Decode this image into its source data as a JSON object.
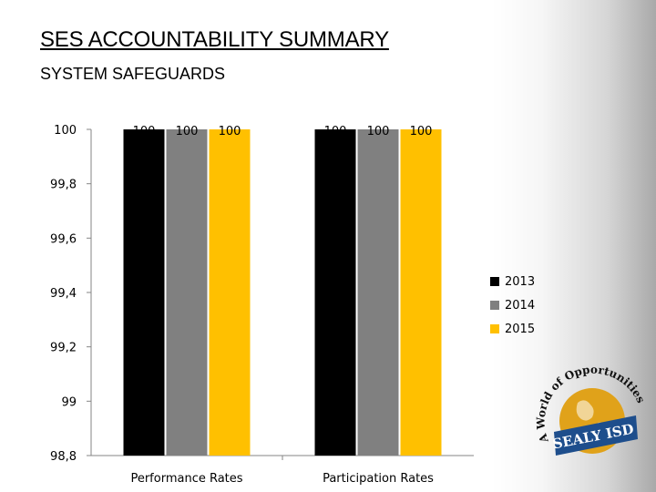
{
  "slide": {
    "title": "SES ACCOUNTABILITY SUMMARY",
    "subtitle": "SYSTEM SAFEGUARDS"
  },
  "chart_data": {
    "type": "bar",
    "categories": [
      "Performance Rates",
      "Participation Rates"
    ],
    "series": [
      {
        "name": "2013",
        "values": [
          100,
          100
        ],
        "color": "#000000"
      },
      {
        "name": "2014",
        "values": [
          100,
          100
        ],
        "color": "#808080"
      },
      {
        "name": "2015",
        "values": [
          100,
          100
        ],
        "color": "#FFC000"
      }
    ],
    "ylim": [
      98.8,
      100
    ],
    "yticks": [
      "98,8",
      "99",
      "99,2",
      "99,4",
      "99,6",
      "99,8",
      "100"
    ],
    "data_labels": [
      "100",
      "100",
      "100",
      "100",
      "100",
      "100"
    ],
    "legend_position": "right",
    "grid": false
  },
  "logo": {
    "arc_text": "A World of Opportunities",
    "banner_text": "SEALY ISD",
    "gold": "#E0A21A",
    "blue": "#1E4E8C"
  }
}
